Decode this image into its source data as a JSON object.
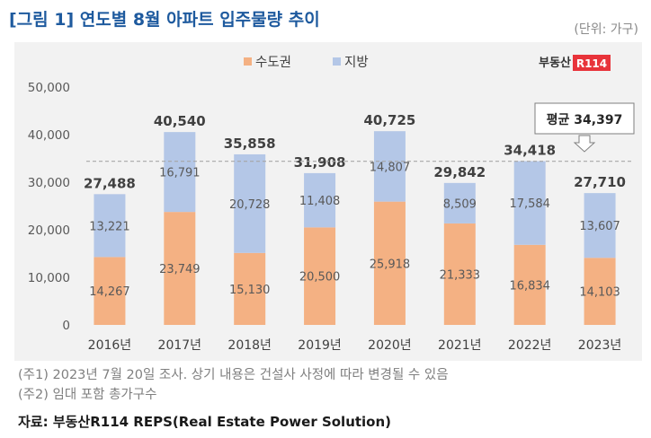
{
  "header": {
    "title": "[그림 1] 연도별 8월 아파트 입주물량 추이",
    "unit": "(단위: 가구)"
  },
  "footer": {
    "note1": "(주1) 2023년 7월 20일 조사. 상기 내용은 건설사 사정에 따라 변경될 수 있음",
    "note2": "(주2) 임대 포함 총가구수",
    "source": "자료: 부동산R114 REPS(Real Estate Power Solution)"
  },
  "brand": {
    "text": "부동산",
    "box_text": "R114"
  },
  "chart_data": {
    "type": "bar",
    "stacked": true,
    "categories": [
      "2016년",
      "2017년",
      "2018년",
      "2019년",
      "2020년",
      "2021년",
      "2022년",
      "2023년"
    ],
    "series": [
      {
        "name": "수도권",
        "color": "#f4b183",
        "values": [
          14267,
          23749,
          15130,
          20500,
          25918,
          21333,
          16834,
          14103
        ]
      },
      {
        "name": "지방",
        "color": "#b4c7e7",
        "values": [
          13221,
          16791,
          20728,
          11408,
          14807,
          8509,
          17584,
          13607
        ]
      }
    ],
    "totals": [
      27488,
      40540,
      35858,
      31908,
      40725,
      29842,
      34418,
      27710
    ],
    "average": {
      "label": "평균",
      "value": 34397
    },
    "y_ticks": [
      0,
      10000,
      20000,
      30000,
      40000,
      50000
    ],
    "ylim": [
      0,
      50000
    ],
    "legend_position": "top-center",
    "grid": false
  }
}
